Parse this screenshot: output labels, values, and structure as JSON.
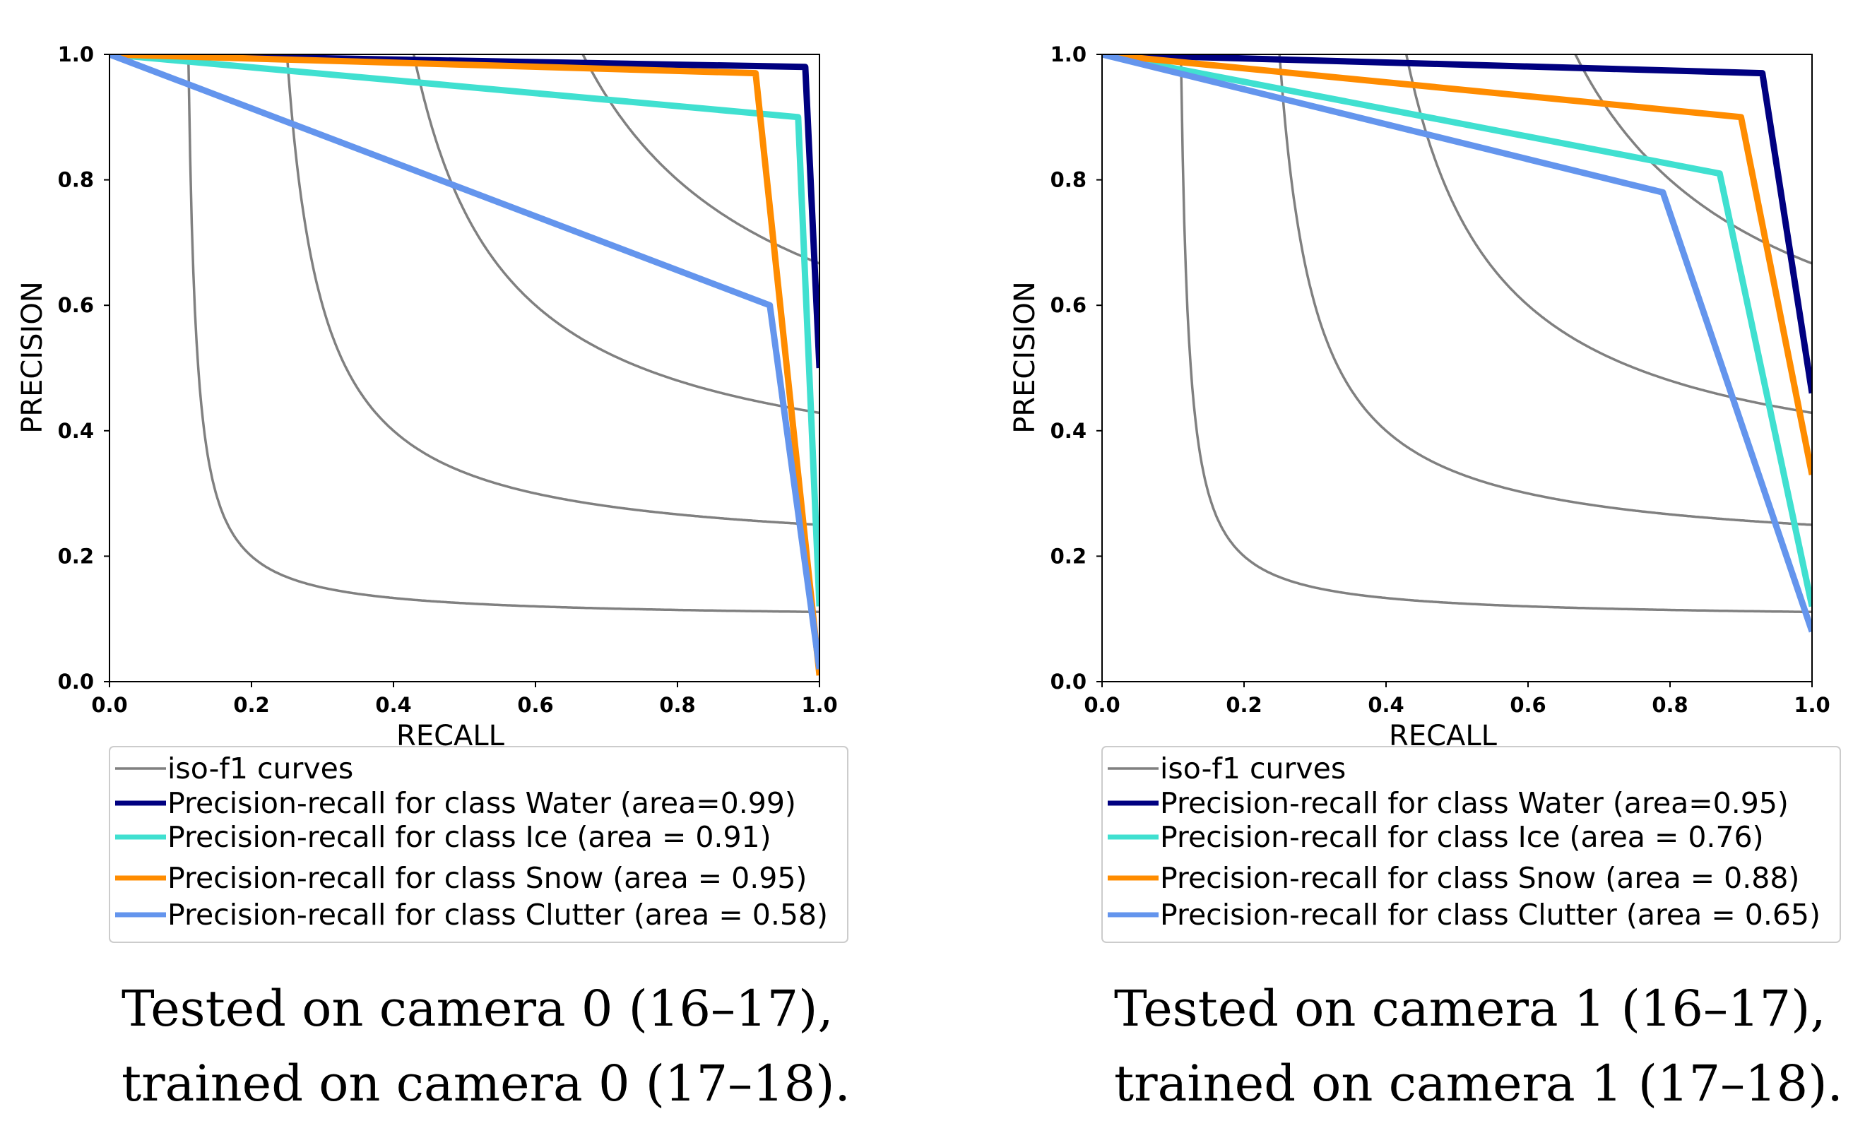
{
  "chart_data": [
    {
      "type": "line",
      "xlabel": "RECALL",
      "ylabel": "PRECISION",
      "xlim": [
        0.0,
        1.0
      ],
      "ylim": [
        0.0,
        1.0
      ],
      "xticks": [
        "0.0",
        "0.2",
        "0.4",
        "0.6",
        "0.8",
        "1.0"
      ],
      "yticks": [
        "0.0",
        "0.2",
        "0.4",
        "0.6",
        "0.8",
        "1.0"
      ],
      "iso_f1_values": [
        0.2,
        0.4,
        0.6,
        0.8
      ],
      "legend": {
        "location": "below",
        "iso_label": "iso-f1 curves"
      },
      "series": [
        {
          "name": "Precision-recall for class Water (area=0.99)",
          "color": "#000080",
          "x": [
            0.0,
            0.98,
            1.0
          ],
          "y": [
            1.0,
            0.98,
            0.5
          ]
        },
        {
          "name": "Precision-recall for class Ice (area = 0.91)",
          "color": "#40e0d0",
          "x": [
            0.0,
            0.97,
            1.0
          ],
          "y": [
            1.0,
            0.9,
            0.12
          ]
        },
        {
          "name": "Precision-recall for class Snow (area = 0.95)",
          "color": "#ff8c00",
          "x": [
            0.0,
            0.91,
            1.0
          ],
          "y": [
            1.0,
            0.97,
            0.01
          ]
        },
        {
          "name": "Precision-recall for class Clutter (area = 0.58)",
          "color": "#6495ed",
          "x": [
            0.0,
            0.93,
            1.0
          ],
          "y": [
            1.0,
            0.6,
            0.02
          ]
        }
      ],
      "caption": [
        "Tested on camera 0 (16–17),",
        "trained on camera 0 (17–18)."
      ]
    },
    {
      "type": "line",
      "xlabel": "RECALL",
      "ylabel": "PRECISION",
      "xlim": [
        0.0,
        1.0
      ],
      "ylim": [
        0.0,
        1.0
      ],
      "xticks": [
        "0.0",
        "0.2",
        "0.4",
        "0.6",
        "0.8",
        "1.0"
      ],
      "yticks": [
        "0.0",
        "0.2",
        "0.4",
        "0.6",
        "0.8",
        "1.0"
      ],
      "iso_f1_values": [
        0.2,
        0.4,
        0.6,
        0.8
      ],
      "legend": {
        "location": "below",
        "iso_label": "iso-f1 curves"
      },
      "series": [
        {
          "name": "Precision-recall for class Water (area=0.95)",
          "color": "#000080",
          "x": [
            0.0,
            0.93,
            1.0
          ],
          "y": [
            1.0,
            0.97,
            0.46
          ]
        },
        {
          "name": "Precision-recall for class Ice (area = 0.76)",
          "color": "#40e0d0",
          "x": [
            0.0,
            0.87,
            1.0
          ],
          "y": [
            1.0,
            0.81,
            0.12
          ]
        },
        {
          "name": "Precision-recall for class Snow (area = 0.88)",
          "color": "#ff8c00",
          "x": [
            0.0,
            0.9,
            1.0
          ],
          "y": [
            1.0,
            0.9,
            0.33
          ]
        },
        {
          "name": "Precision-recall for class Clutter (area = 0.65)",
          "color": "#6495ed",
          "x": [
            0.0,
            0.79,
            1.0
          ],
          "y": [
            1.0,
            0.78,
            0.08
          ]
        }
      ],
      "caption": [
        "Tested on camera 1 (16–17),",
        "trained on camera 1 (17–18)."
      ]
    }
  ]
}
